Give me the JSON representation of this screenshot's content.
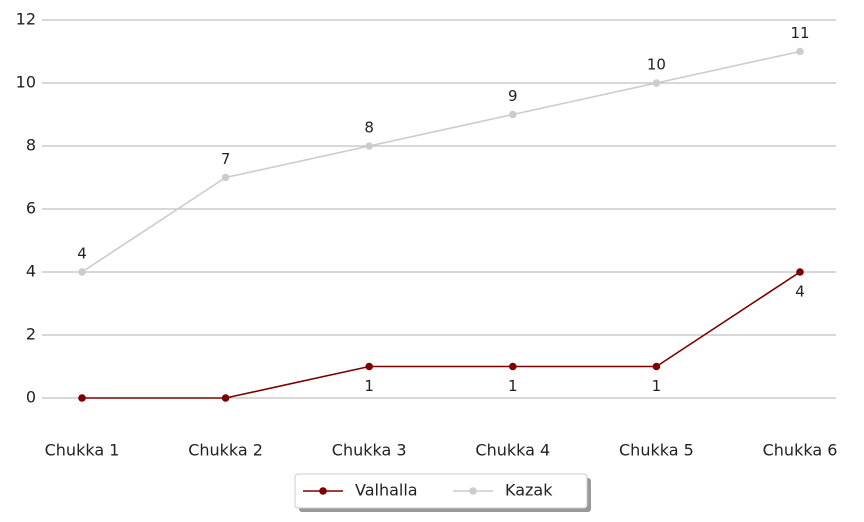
{
  "chart_data": {
    "type": "line",
    "categories": [
      "Chukka 1",
      "Chukka 2",
      "Chukka 3",
      "Chukka 4",
      "Chukka 5",
      "Chukka 6"
    ],
    "series": [
      {
        "name": "Valhalla",
        "color": "#7b0000",
        "values": [
          0,
          0,
          1,
          1,
          1,
          4
        ],
        "value_labels": [
          null,
          null,
          "1",
          "1",
          "1",
          "4"
        ]
      },
      {
        "name": "Kazak",
        "color": "#cccccc",
        "values": [
          4,
          7,
          8,
          9,
          10,
          11
        ]
      }
    ],
    "ylim": [
      -1,
      12
    ],
    "yticks": [
      0,
      2,
      4,
      6,
      8,
      10,
      12
    ],
    "grid": true,
    "legend": "lower center"
  }
}
